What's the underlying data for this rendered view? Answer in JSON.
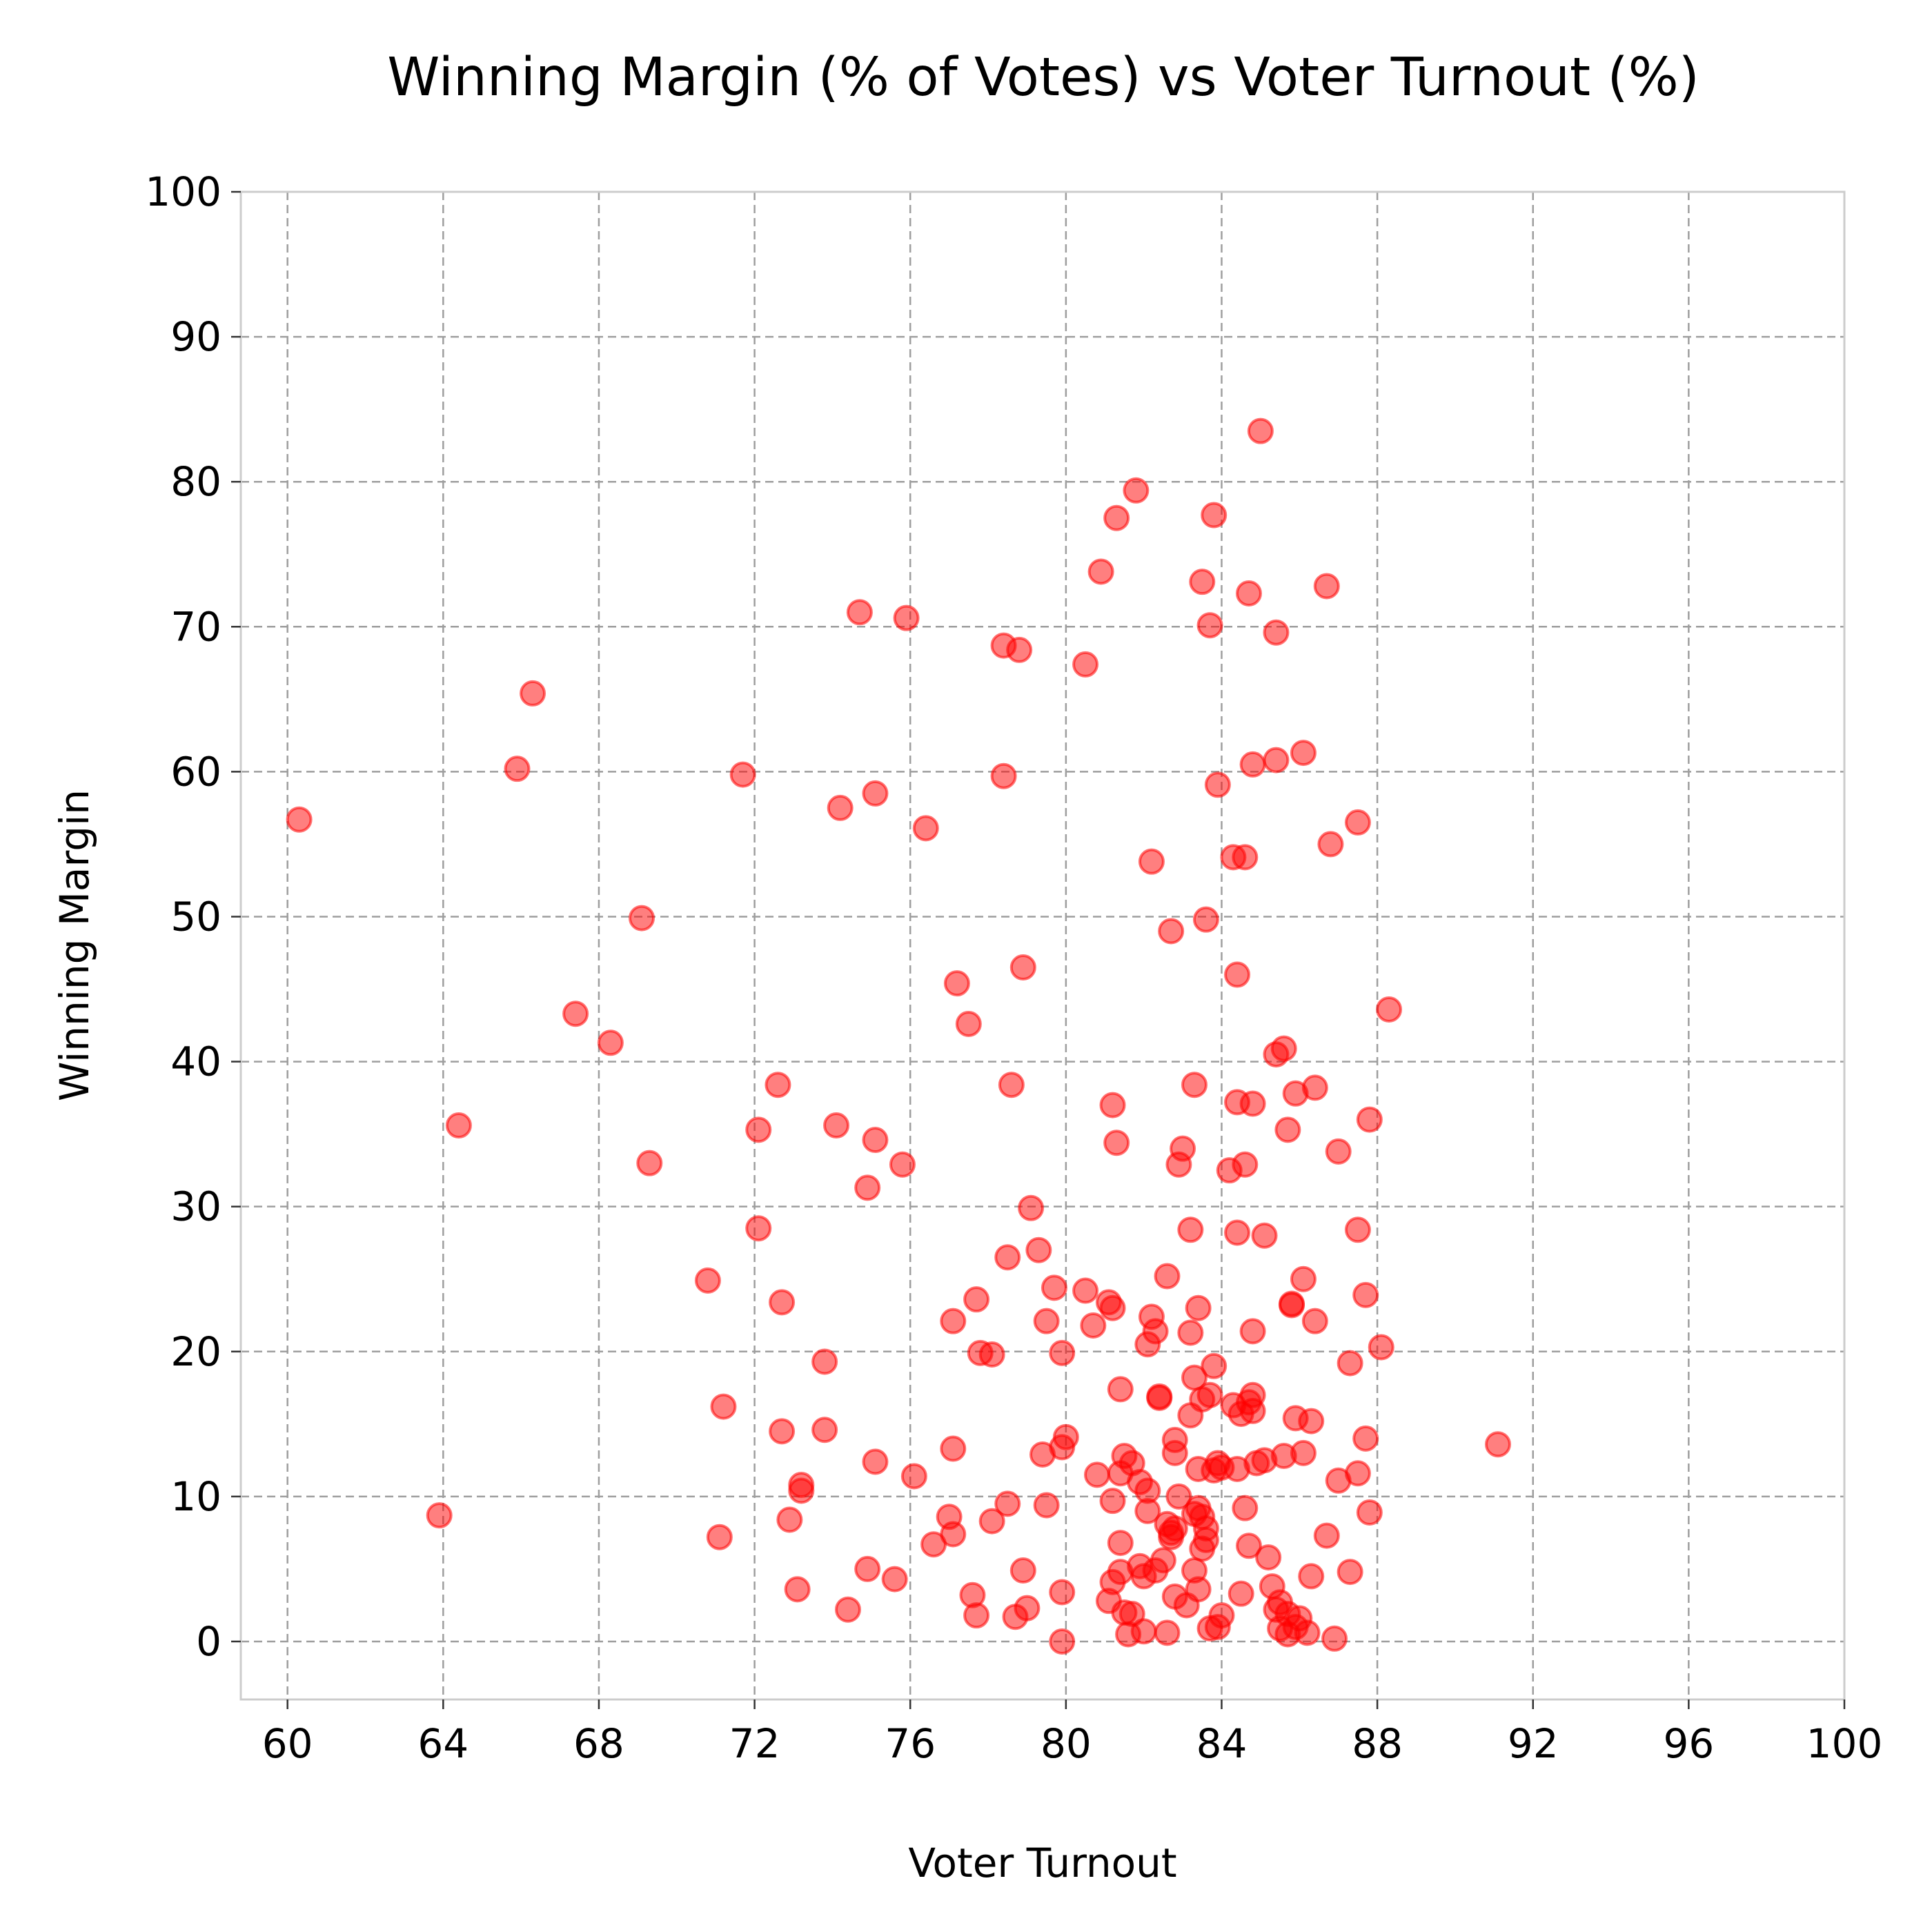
{
  "chart_data": {
    "type": "scatter",
    "title": "Winning Margin (% of Votes) vs Voter Turnout (%)",
    "xlabel": "Voter Turnout",
    "ylabel": "Winning Margin",
    "xlim": [
      58.8,
      100
    ],
    "ylim": [
      -4,
      100
    ],
    "xticks": [
      "60",
      "64",
      "68",
      "72",
      "76",
      "80",
      "84",
      "88",
      "92",
      "96",
      "100"
    ],
    "yticks": [
      "0",
      "10",
      "20",
      "30",
      "40",
      "50",
      "60",
      "70",
      "80",
      "90",
      "100"
    ],
    "grid": true,
    "marker_color": "#ff0000",
    "marker_alpha": 0.5,
    "points": [
      [
        60.3,
        56.7
      ],
      [
        63.9,
        8.7
      ],
      [
        64.4,
        35.6
      ],
      [
        65.9,
        60.2
      ],
      [
        66.3,
        65.4
      ],
      [
        67.4,
        43.3
      ],
      [
        68.3,
        41.3
      ],
      [
        69.1,
        49.9
      ],
      [
        69.3,
        33.0
      ],
      [
        70.8,
        24.9
      ],
      [
        71.1,
        7.2
      ],
      [
        71.2,
        16.2
      ],
      [
        71.7,
        59.8
      ],
      [
        72.1,
        35.3
      ],
      [
        72.1,
        28.5
      ],
      [
        72.6,
        38.4
      ],
      [
        72.7,
        23.4
      ],
      [
        72.7,
        14.5
      ],
      [
        72.9,
        8.4
      ],
      [
        73.1,
        3.6
      ],
      [
        73.2,
        10.8
      ],
      [
        73.2,
        10.4
      ],
      [
        73.8,
        19.3
      ],
      [
        73.8,
        14.6
      ],
      [
        74.1,
        35.6
      ],
      [
        74.2,
        57.5
      ],
      [
        74.4,
        2.2
      ],
      [
        74.7,
        71.0
      ],
      [
        74.9,
        31.3
      ],
      [
        74.9,
        5.0
      ],
      [
        75.1,
        58.5
      ],
      [
        75.1,
        34.6
      ],
      [
        75.1,
        12.4
      ],
      [
        75.6,
        4.3
      ],
      [
        75.8,
        32.9
      ],
      [
        75.9,
        70.6
      ],
      [
        76.1,
        11.4
      ],
      [
        76.4,
        56.1
      ],
      [
        76.6,
        6.7
      ],
      [
        77.0,
        8.6
      ],
      [
        77.1,
        22.1
      ],
      [
        77.1,
        13.3
      ],
      [
        77.1,
        7.4
      ],
      [
        77.2,
        45.4
      ],
      [
        77.5,
        42.6
      ],
      [
        77.6,
        3.2
      ],
      [
        77.7,
        23.6
      ],
      [
        77.7,
        1.8
      ],
      [
        77.8,
        19.9
      ],
      [
        78.1,
        19.8
      ],
      [
        78.1,
        8.3
      ],
      [
        78.4,
        68.7
      ],
      [
        78.4,
        59.7
      ],
      [
        78.5,
        26.5
      ],
      [
        78.5,
        9.5
      ],
      [
        78.6,
        38.4
      ],
      [
        78.7,
        1.7
      ],
      [
        78.8,
        68.4
      ],
      [
        78.9,
        46.5
      ],
      [
        78.9,
        4.9
      ],
      [
        79.0,
        2.3
      ],
      [
        79.1,
        29.9
      ],
      [
        79.3,
        27.0
      ],
      [
        79.4,
        12.9
      ],
      [
        79.5,
        22.1
      ],
      [
        79.5,
        9.4
      ],
      [
        79.7,
        24.4
      ],
      [
        79.9,
        19.9
      ],
      [
        79.9,
        13.4
      ],
      [
        79.9,
        3.4
      ],
      [
        79.9,
        0.0
      ],
      [
        80.0,
        14.1
      ],
      [
        80.5,
        67.4
      ],
      [
        80.5,
        24.2
      ],
      [
        80.7,
        21.8
      ],
      [
        80.8,
        11.5
      ],
      [
        80.9,
        73.8
      ],
      [
        81.1,
        23.4
      ],
      [
        81.1,
        2.8
      ],
      [
        81.2,
        37.0
      ],
      [
        81.2,
        23.0
      ],
      [
        81.2,
        9.7
      ],
      [
        81.2,
        4.1
      ],
      [
        81.3,
        77.5
      ],
      [
        81.3,
        34.4
      ],
      [
        81.4,
        17.4
      ],
      [
        81.4,
        11.6
      ],
      [
        81.4,
        6.8
      ],
      [
        81.4,
        4.8
      ],
      [
        81.5,
        12.8
      ],
      [
        81.5,
        2.0
      ],
      [
        81.6,
        0.5
      ],
      [
        81.7,
        12.3
      ],
      [
        81.7,
        1.9
      ],
      [
        81.8,
        79.4
      ],
      [
        81.9,
        11.0
      ],
      [
        81.9,
        5.2
      ],
      [
        82.0,
        4.5
      ],
      [
        82.0,
        0.7
      ],
      [
        82.1,
        20.5
      ],
      [
        82.1,
        10.4
      ],
      [
        82.1,
        9.0
      ],
      [
        82.2,
        53.8
      ],
      [
        82.2,
        22.4
      ],
      [
        82.3,
        21.4
      ],
      [
        82.3,
        4.9
      ],
      [
        82.4,
        16.9
      ],
      [
        82.4,
        16.8
      ],
      [
        82.5,
        5.6
      ],
      [
        82.6,
        25.2
      ],
      [
        82.6,
        8.1
      ],
      [
        82.6,
        0.6
      ],
      [
        82.7,
        49.0
      ],
      [
        82.7,
        7.5
      ],
      [
        82.7,
        7.2
      ],
      [
        82.8,
        13.9
      ],
      [
        82.8,
        13.0
      ],
      [
        82.8,
        3.1
      ],
      [
        82.8,
        7.8
      ],
      [
        82.9,
        32.9
      ],
      [
        82.9,
        10.0
      ],
      [
        83.0,
        34.0
      ],
      [
        83.1,
        2.5
      ],
      [
        83.2,
        28.4
      ],
      [
        83.2,
        21.3
      ],
      [
        83.2,
        15.6
      ],
      [
        83.3,
        38.4
      ],
      [
        83.3,
        18.2
      ],
      [
        83.3,
        8.8
      ],
      [
        83.3,
        4.9
      ],
      [
        83.4,
        23.0
      ],
      [
        83.4,
        11.9
      ],
      [
        83.4,
        9.2
      ],
      [
        83.4,
        3.6
      ],
      [
        83.5,
        73.1
      ],
      [
        83.5,
        16.7
      ],
      [
        83.5,
        8.6
      ],
      [
        83.5,
        6.4
      ],
      [
        83.6,
        49.8
      ],
      [
        83.6,
        7.8
      ],
      [
        83.6,
        7.0
      ],
      [
        83.7,
        70.1
      ],
      [
        83.7,
        17.0
      ],
      [
        83.7,
        0.9
      ],
      [
        83.8,
        77.7
      ],
      [
        83.8,
        19.0
      ],
      [
        83.8,
        11.8
      ],
      [
        83.9,
        59.1
      ],
      [
        83.9,
        12.3
      ],
      [
        83.9,
        1.0
      ],
      [
        84.0,
        12.0
      ],
      [
        84.0,
        1.8
      ],
      [
        84.2,
        32.5
      ],
      [
        84.3,
        54.1
      ],
      [
        84.3,
        16.3
      ],
      [
        84.4,
        46.0
      ],
      [
        84.4,
        37.2
      ],
      [
        84.4,
        28.2
      ],
      [
        84.4,
        11.9
      ],
      [
        84.5,
        15.7
      ],
      [
        84.5,
        3.3
      ],
      [
        84.6,
        54.1
      ],
      [
        84.6,
        32.9
      ],
      [
        84.6,
        9.2
      ],
      [
        84.7,
        72.3
      ],
      [
        84.7,
        16.5
      ],
      [
        84.7,
        6.6
      ],
      [
        84.8,
        60.5
      ],
      [
        84.8,
        37.1
      ],
      [
        84.8,
        21.4
      ],
      [
        84.8,
        17.0
      ],
      [
        84.8,
        15.9
      ],
      [
        84.9,
        12.3
      ],
      [
        85.0,
        83.5
      ],
      [
        85.1,
        28.0
      ],
      [
        85.1,
        12.5
      ],
      [
        85.2,
        5.8
      ],
      [
        85.3,
        3.8
      ],
      [
        85.4,
        69.6
      ],
      [
        85.4,
        60.8
      ],
      [
        85.4,
        40.5
      ],
      [
        85.4,
        2.2
      ],
      [
        85.5,
        2.7
      ],
      [
        85.5,
        0.9
      ],
      [
        85.6,
        40.9
      ],
      [
        85.6,
        12.8
      ],
      [
        85.7,
        35.3
      ],
      [
        85.7,
        1.9
      ],
      [
        85.7,
        0.5
      ],
      [
        85.8,
        23.3
      ],
      [
        85.8,
        23.2
      ],
      [
        85.9,
        37.8
      ],
      [
        85.9,
        15.4
      ],
      [
        85.9,
        1.0
      ],
      [
        86.0,
        1.6
      ],
      [
        86.1,
        61.3
      ],
      [
        86.1,
        25.0
      ],
      [
        86.1,
        13.0
      ],
      [
        86.2,
        0.6
      ],
      [
        86.3,
        15.2
      ],
      [
        86.3,
        4.5
      ],
      [
        86.4,
        38.2
      ],
      [
        86.4,
        22.1
      ],
      [
        86.7,
        72.8
      ],
      [
        86.7,
        7.3
      ],
      [
        86.8,
        55.0
      ],
      [
        86.9,
        0.2
      ],
      [
        87.0,
        33.8
      ],
      [
        87.0,
        11.1
      ],
      [
        87.3,
        19.2
      ],
      [
        87.3,
        4.8
      ],
      [
        87.5,
        56.5
      ],
      [
        87.5,
        28.4
      ],
      [
        87.5,
        11.6
      ],
      [
        87.7,
        23.9
      ],
      [
        87.7,
        14.0
      ],
      [
        87.8,
        36.0
      ],
      [
        87.8,
        8.9
      ],
      [
        88.1,
        20.3
      ],
      [
        88.3,
        43.6
      ],
      [
        91.1,
        13.6
      ]
    ]
  }
}
